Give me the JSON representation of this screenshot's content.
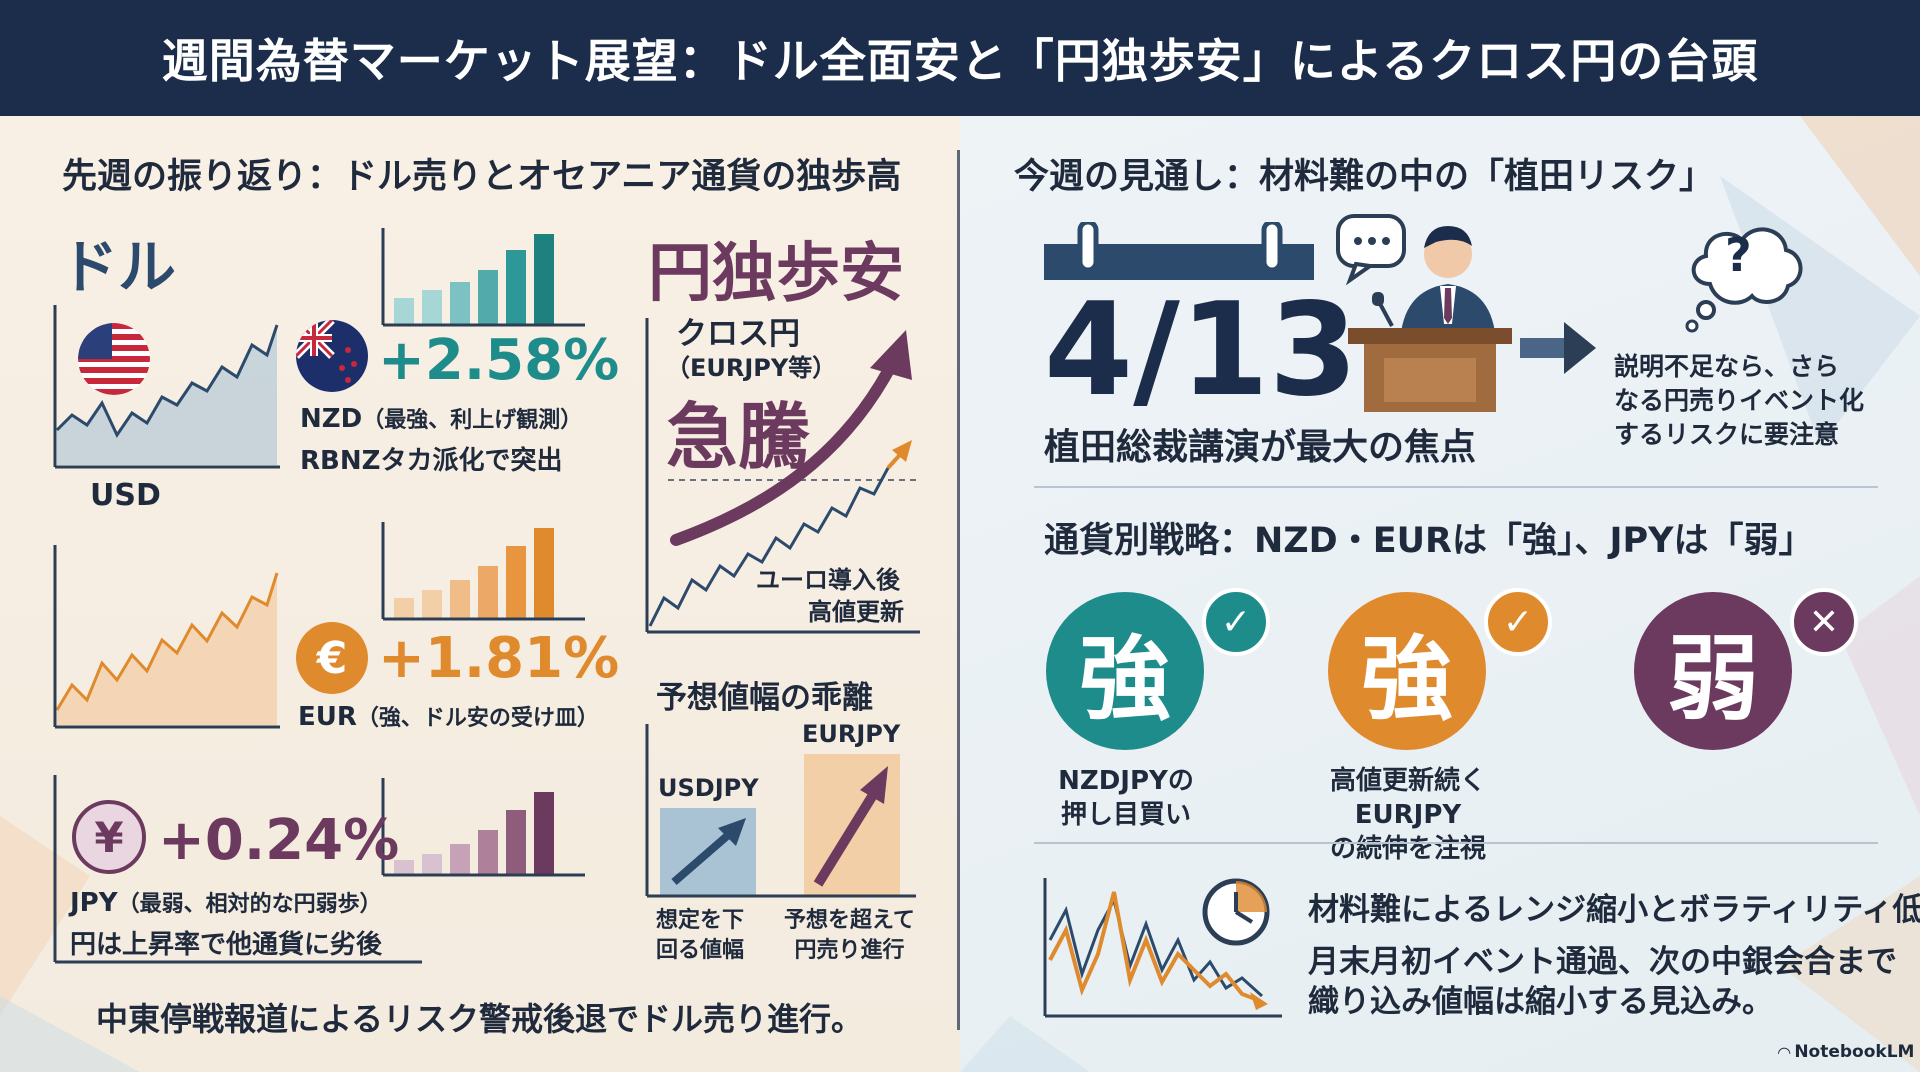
{
  "header": {
    "title": "週間為替マーケット展望：ドル全面安と「円独歩安」によるクロス円の台頭"
  },
  "left": {
    "section_title": "先週の振り返り：ドル売りとオセアニア通貨の独歩高",
    "dollar_label": "ドル",
    "usd_label": "USD",
    "nzd": {
      "pct": "+2.58%",
      "code": "NZD",
      "note1": "（最強、利上げ観測）",
      "note2": "RBNZタカ派化で突出",
      "color": "#1f8c8c"
    },
    "eur": {
      "pct": "+1.81%",
      "code": "EUR",
      "note1": "（強、ドル安の受け皿）",
      "symbol": "€",
      "color": "#e08a2e"
    },
    "jpy": {
      "pct": "+0.24%",
      "code": "JPY",
      "note1": "（最弱、相対的な円弱歩）",
      "note2": "円は上昇率で他通貨に劣後",
      "symbol": "¥",
      "color": "#6b3a5e"
    },
    "yen_weak_title": "円独歩安",
    "cross": {
      "line1": "クロス円",
      "line2": "（EURJPY等）",
      "big": "急騰",
      "note1": "ユーロ導入後",
      "note2": "高値更新"
    },
    "range_gap": {
      "title": "予想値幅の乖離",
      "usdjpy": "USDJPY",
      "eurjpy": "EURJPY",
      "cap1a": "想定を下",
      "cap1b": "回る値幅",
      "cap2a": "予想を超えて",
      "cap2b": "円売り進行"
    },
    "bottom": "中東停戦報道によるリスク警戒後退でドル売り進行。"
  },
  "right": {
    "section_title": "今週の見通し：材料難の中の「植田リスク」",
    "date": "4/13",
    "focus": "植田総裁講演が最大の焦点",
    "warn1": "説明不足なら、さら",
    "warn2": "なる円売りイベント化",
    "warn3": "するリスクに要注意",
    "question": "?",
    "strategy_title": "通貨別戦略：NZD・EURは「強」、JPYは「弱」",
    "strong1": {
      "kanji": "強",
      "cap1": "NZDJPYの",
      "cap2": "押し目買い",
      "color": "#1f8c8c"
    },
    "strong2": {
      "kanji": "強",
      "cap1": "高値更新続くEURJPY",
      "cap2": "の続伸を注視",
      "color": "#e08a2e"
    },
    "weak": {
      "kanji": "弱",
      "color": "#6b3a5e"
    },
    "vol1": "材料難によるレンジ縮小とボラティリティ低下",
    "vol2": "月末月初イベント通過、次の中銀会合まで",
    "vol3": "織り込み値幅は縮小する見込み。",
    "credit": "NotebookLM"
  }
}
